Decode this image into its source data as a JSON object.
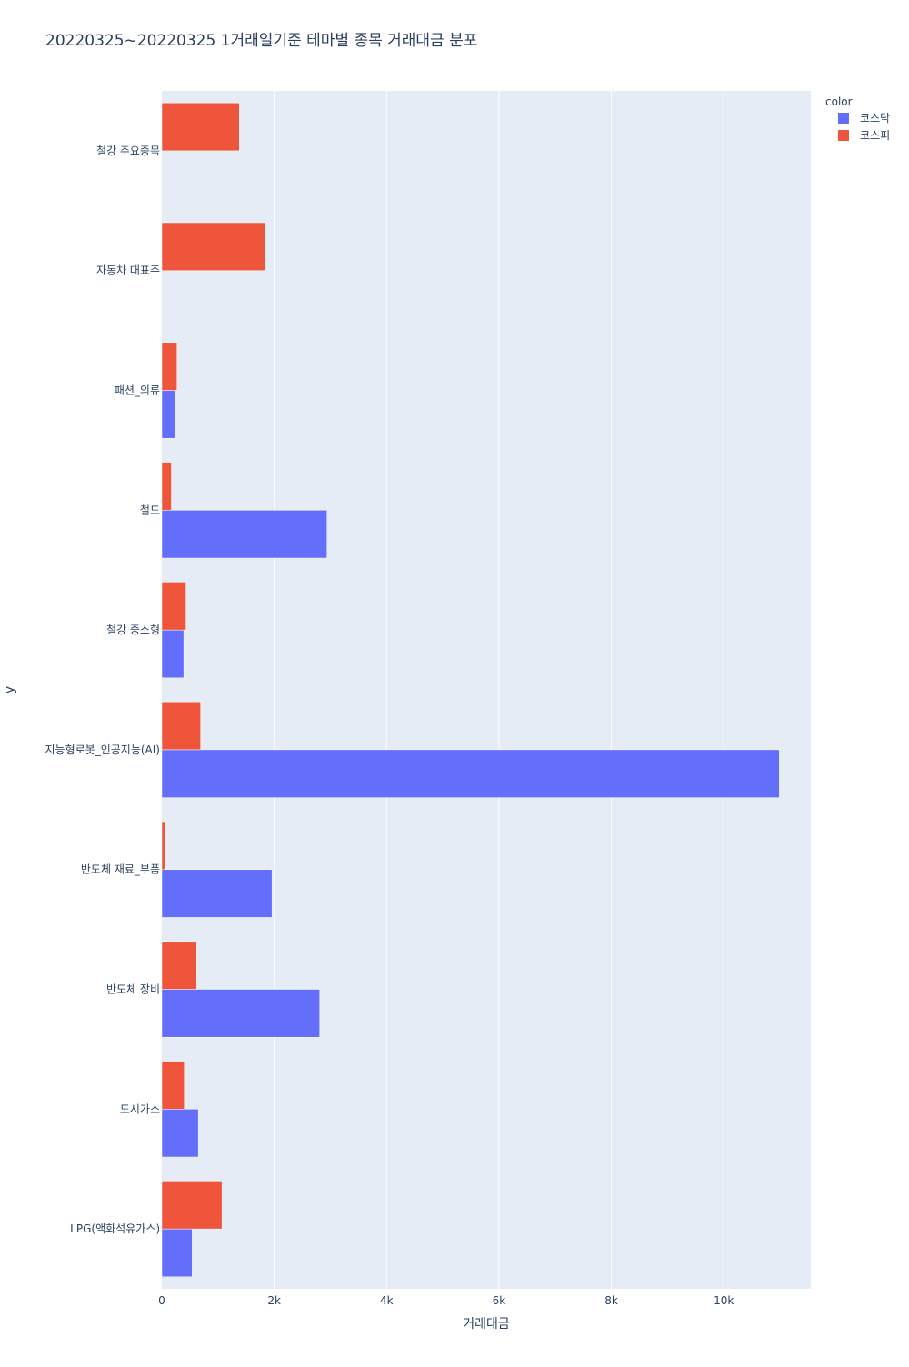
{
  "chart_data": {
    "type": "bar",
    "orientation": "horizontal",
    "barmode": "group",
    "title": "20220325~20220325 1거래일기준 테마별 종목 거래대금 분포",
    "xlabel": "거래대금",
    "ylabel": "y",
    "xlim": [
      0,
      11550
    ],
    "x_ticks": [
      0,
      2000,
      4000,
      6000,
      8000,
      10000
    ],
    "x_tick_labels": [
      "0",
      "2k",
      "4k",
      "6k",
      "8k",
      "10k"
    ],
    "grid": true,
    "legend_title": "color",
    "legend_position": "top-right",
    "categories": [
      "철강 주요종목",
      "자동차 대표주",
      "패션_의류",
      "철도",
      "철강 중소형",
      "지능형로봇_인공지능(AI)",
      "반도체 재료_부품",
      "반도체 장비",
      "도시가스",
      "LPG(액화석유가스)"
    ],
    "series": [
      {
        "name": "코스닥",
        "color": "#636efa",
        "values": [
          0,
          0,
          240,
          2940,
          390,
          10990,
          1960,
          2810,
          650,
          540
        ]
      },
      {
        "name": "코스피",
        "color": "#ef553b",
        "values": [
          1380,
          1840,
          270,
          170,
          430,
          690,
          70,
          620,
          400,
          1070
        ]
      }
    ]
  }
}
